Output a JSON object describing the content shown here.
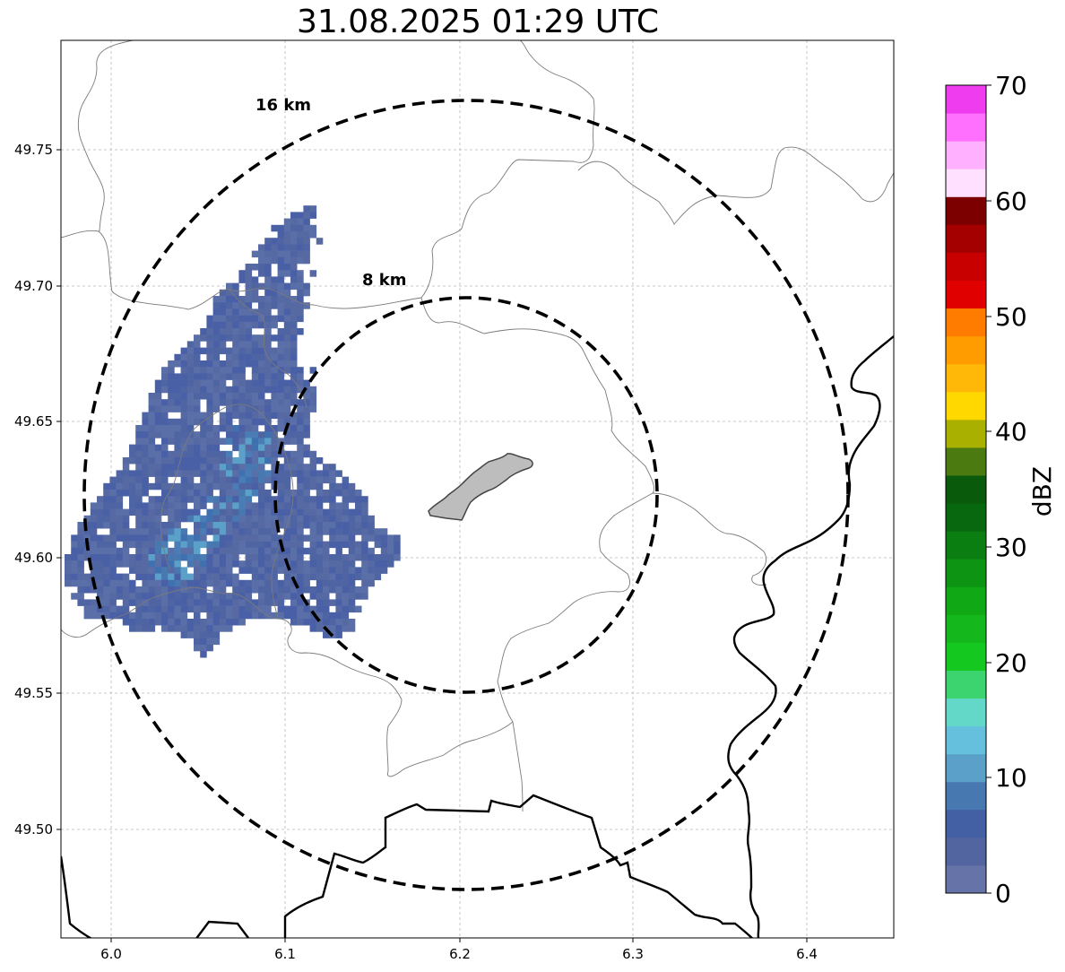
{
  "title": "31.08.2025 01:29 UTC",
  "map": {
    "x_ticks": [
      "6.0",
      "6.1",
      "6.2",
      "6.3",
      "6.4"
    ],
    "y_ticks": [
      "49.75",
      "49.70",
      "49.65",
      "49.60",
      "49.55",
      "49.50"
    ],
    "grid": true,
    "rings": [
      {
        "label": "16 km",
        "radius_km": 16
      },
      {
        "label": "8 km",
        "radius_km": 8
      }
    ]
  },
  "colorbar": {
    "label": "dBZ",
    "ticks": [
      "0",
      "10",
      "20",
      "30",
      "40",
      "50",
      "60",
      "70"
    ],
    "colors": [
      "#6673a8",
      "#5365a0",
      "#4360a5",
      "#4878b0",
      "#5aa0c8",
      "#64c0dc",
      "#64d8c8",
      "#3cd46e",
      "#14c820",
      "#14b81c",
      "#10a814",
      "#0c9412",
      "#0a7e10",
      "#086810",
      "#0a5a0c",
      "#4a7a10",
      "#aab000",
      "#ffd800",
      "#ffb808",
      "#ff9c00",
      "#ff7c00",
      "#e00000",
      "#c80000",
      "#a40000",
      "#7c0000",
      "#ffe0ff",
      "#ffb0ff",
      "#ff70ff",
      "#ee3cee"
    ]
  }
}
